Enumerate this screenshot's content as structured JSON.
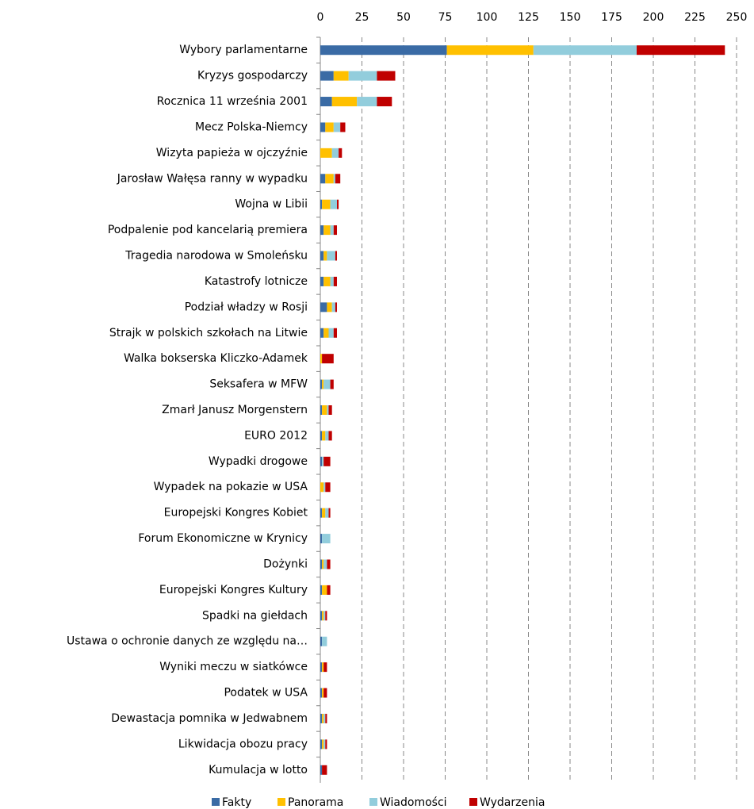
{
  "chart_data": {
    "type": "stacked-barh",
    "categories": [
      "Wybory parlamentarne",
      "Kryzys gospodarczy",
      "Rocznica 11 września 2001",
      "Mecz Polska-Niemcy",
      "Wizyta papieża w ojczyźnie",
      "Jarosław Wałęsa ranny w wypadku",
      "Wojna w Libii",
      "Podpalenie pod kancelarią premiera",
      "Tragedia narodowa w Smoleńsku",
      "Katastrofy lotnicze",
      "Podział władzy w Rosji",
      "Strajk w polskich szkołach na Litwie",
      "Walka bokserska Kliczko-Adamek",
      "Seksafera w MFW",
      "Zmarł Janusz Morgenstern",
      "EURO 2012",
      "Wypadki drogowe",
      "Wypadek na pokazie w USA",
      "Europejski Kongres Kobiet",
      "Forum Ekonomiczne w Krynicy",
      "Dożynki",
      "Europejski Kongres Kultury",
      "Spadki na giełdach",
      "Ustawa o ochronie danych ze względu na…",
      "Wyniki meczu w siatkówce",
      "Podatek w USA",
      "Dewastacja pomnika w Jedwabnem",
      "Likwidacja obozu pracy",
      "Kumulacja w lotto"
    ],
    "series": [
      {
        "name": "Fakty",
        "color": "#3a6ba5",
        "values": [
          76,
          8,
          7,
          3,
          0,
          3,
          1,
          2,
          2,
          2,
          4,
          2,
          0,
          1,
          1,
          1,
          1,
          0,
          1,
          1,
          1,
          1,
          1,
          1,
          1,
          1,
          1,
          1,
          1
        ]
      },
      {
        "name": "Panorama",
        "color": "#ffc000",
        "values": [
          52,
          9,
          15,
          5,
          7,
          5,
          5,
          4,
          2,
          4,
          3,
          3,
          1,
          1,
          3,
          2,
          0,
          2,
          2,
          0,
          1,
          3,
          1,
          0,
          1,
          1,
          1,
          1,
          0
        ]
      },
      {
        "name": "Wiadomości",
        "color": "#92cddc",
        "values": [
          62,
          17,
          12,
          4,
          4,
          1,
          4,
          2,
          5,
          2,
          2,
          3,
          0,
          4,
          1,
          2,
          1,
          1,
          2,
          5,
          2,
          0,
          1,
          3,
          0,
          0,
          1,
          1,
          0
        ]
      },
      {
        "name": "Wydarzenia",
        "color": "#c00000",
        "values": [
          53,
          11,
          9,
          3,
          2,
          3,
          1,
          2,
          1,
          2,
          1,
          2,
          7,
          2,
          2,
          2,
          4,
          3,
          1,
          0,
          2,
          2,
          1,
          0,
          2,
          2,
          1,
          1,
          3
        ]
      }
    ],
    "xlim": [
      0,
      250
    ],
    "xticks": [
      0,
      25,
      50,
      75,
      100,
      125,
      150,
      175,
      200,
      225,
      250
    ],
    "grid": true,
    "legend": "bottom"
  }
}
